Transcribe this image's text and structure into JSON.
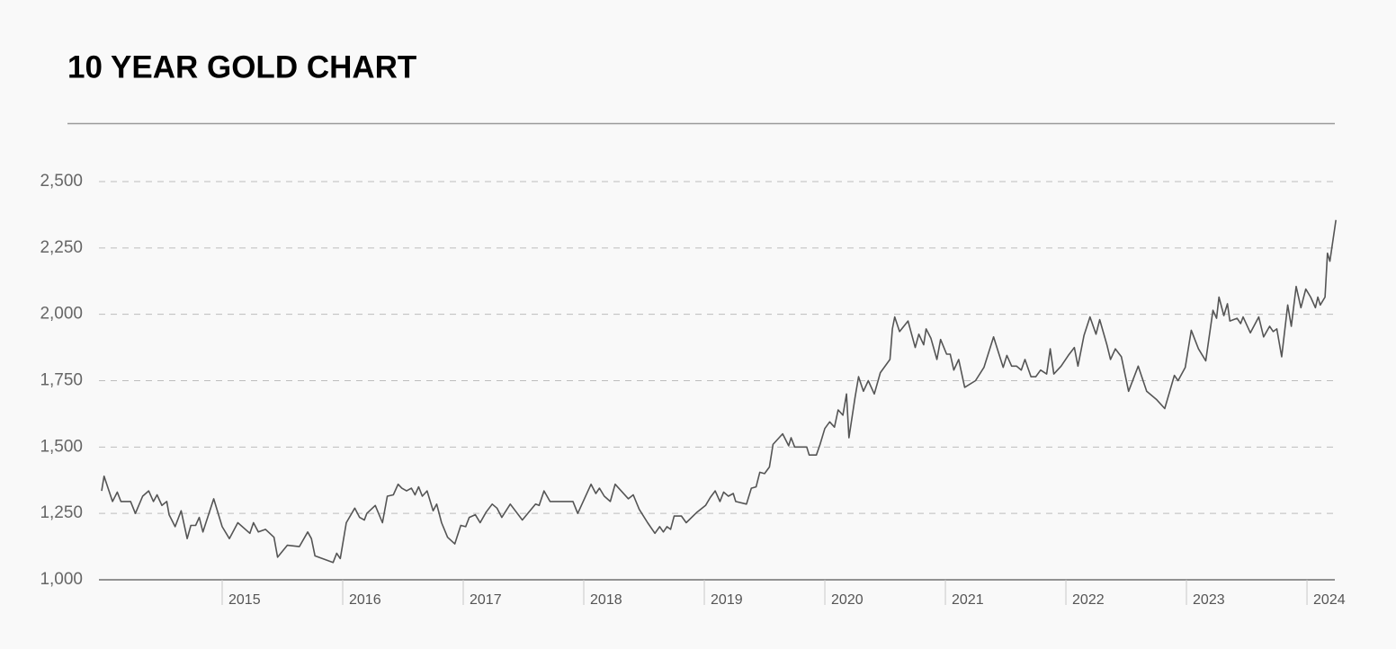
{
  "chart_data": {
    "type": "line",
    "title": "10 YEAR GOLD CHART",
    "color": "#555555",
    "grid": true,
    "xlim": [
      2014,
      2024.24
    ],
    "xticks": [
      2015,
      2016,
      2017,
      2018,
      2019,
      2020,
      2021,
      2022,
      2023,
      2024
    ],
    "ylim": [
      1000,
      2500
    ],
    "yticks": [
      {
        "value": 1000,
        "label": "1,000"
      },
      {
        "value": 1250,
        "label": "1,250"
      },
      {
        "value": 1500,
        "label": "1,500"
      },
      {
        "value": 1750,
        "label": "1,750"
      },
      {
        "value": 2000,
        "label": "2,000"
      },
      {
        "value": 2250,
        "label": "2,250"
      },
      {
        "value": 2500,
        "label": "2,500"
      }
    ],
    "x": [
      2014.0,
      2014.02,
      2014.09,
      2014.13,
      2014.16,
      2014.24,
      2014.28,
      2014.34,
      2014.39,
      2014.43,
      2014.46,
      2014.5,
      2014.54,
      2014.56,
      2014.61,
      2014.66,
      2014.71,
      2014.74,
      2014.78,
      2014.81,
      2014.84,
      2014.93,
      2015.0,
      2015.06,
      2015.13,
      2015.23,
      2015.26,
      2015.3,
      2015.36,
      2015.43,
      2015.46,
      2015.54,
      2015.64,
      2015.71,
      2015.74,
      2015.77,
      2015.92,
      2015.95,
      2015.98,
      2016.03,
      2016.1,
      2016.14,
      2016.18,
      2016.2,
      2016.27,
      2016.33,
      2016.37,
      2016.42,
      2016.46,
      2016.49,
      2016.53,
      2016.57,
      2016.6,
      2016.63,
      2016.66,
      2016.7,
      2016.75,
      2016.78,
      2016.82,
      2016.87,
      2016.93,
      2016.98,
      2017.02,
      2017.05,
      2017.1,
      2017.14,
      2017.19,
      2017.24,
      2017.28,
      2017.32,
      2017.39,
      2017.49,
      2017.6,
      2017.63,
      2017.67,
      2017.72,
      2017.82,
      2017.91,
      2017.95,
      2018.06,
      2018.1,
      2018.13,
      2018.17,
      2018.22,
      2018.26,
      2018.37,
      2018.41,
      2018.46,
      2018.53,
      2018.59,
      2018.63,
      2018.66,
      2018.69,
      2018.72,
      2018.75,
      2018.81,
      2018.85,
      2018.94,
      2019.01,
      2019.05,
      2019.09,
      2019.13,
      2019.16,
      2019.2,
      2019.24,
      2019.26,
      2019.35,
      2019.39,
      2019.43,
      2019.46,
      2019.5,
      2019.54,
      2019.57,
      2019.65,
      2019.7,
      2019.72,
      2019.75,
      2019.85,
      2019.87,
      2019.93,
      2019.96,
      2020.0,
      2020.04,
      2020.08,
      2020.11,
      2020.15,
      2020.18,
      2020.2,
      2020.25,
      2020.28,
      2020.32,
      2020.36,
      2020.41,
      2020.46,
      2020.54,
      2020.56,
      2020.58,
      2020.62,
      2020.69,
      2020.75,
      2020.78,
      2020.82,
      2020.84,
      2020.88,
      2020.93,
      2020.96,
      2021.01,
      2021.04,
      2021.07,
      2021.11,
      2021.16,
      2021.25,
      2021.32,
      2021.4,
      2021.48,
      2021.51,
      2021.55,
      2021.59,
      2021.63,
      2021.66,
      2021.71,
      2021.75,
      2021.79,
      2021.84,
      2021.87,
      2021.9,
      2021.96,
      2022.02,
      2022.07,
      2022.1,
      2022.15,
      2022.2,
      2022.25,
      2022.28,
      2022.34,
      2022.37,
      2022.41,
      2022.46,
      2022.52,
      2022.6,
      2022.67,
      2022.75,
      2022.82,
      2022.9,
      2022.93,
      2022.99,
      2023.04,
      2023.1,
      2023.16,
      2023.22,
      2023.25,
      2023.27,
      2023.31,
      2023.34,
      2023.36,
      2023.42,
      2023.45,
      2023.47,
      2023.53,
      2023.6,
      2023.64,
      2023.69,
      2023.72,
      2023.75,
      2023.79,
      2023.84,
      2023.87,
      2023.91,
      2023.95,
      2023.99,
      2024.03,
      2024.07,
      2024.09,
      2024.11,
      2024.15,
      2024.17,
      2024.19,
      2024.24
    ],
    "values": [
      1335,
      1390,
      1295,
      1330,
      1295,
      1295,
      1250,
      1315,
      1335,
      1295,
      1320,
      1280,
      1295,
      1245,
      1200,
      1260,
      1155,
      1205,
      1205,
      1235,
      1180,
      1305,
      1200,
      1155,
      1215,
      1175,
      1215,
      1180,
      1190,
      1160,
      1085,
      1130,
      1125,
      1180,
      1155,
      1090,
      1065,
      1100,
      1080,
      1215,
      1270,
      1235,
      1225,
      1250,
      1280,
      1215,
      1315,
      1320,
      1360,
      1345,
      1335,
      1345,
      1320,
      1350,
      1315,
      1335,
      1260,
      1285,
      1215,
      1160,
      1135,
      1205,
      1200,
      1235,
      1245,
      1215,
      1255,
      1285,
      1270,
      1235,
      1285,
      1225,
      1285,
      1280,
      1335,
      1295,
      1295,
      1295,
      1250,
      1360,
      1325,
      1345,
      1315,
      1295,
      1360,
      1305,
      1320,
      1265,
      1215,
      1175,
      1200,
      1180,
      1200,
      1190,
      1240,
      1240,
      1215,
      1255,
      1280,
      1310,
      1335,
      1295,
      1330,
      1315,
      1325,
      1295,
      1285,
      1345,
      1350,
      1405,
      1400,
      1425,
      1510,
      1550,
      1505,
      1535,
      1500,
      1500,
      1470,
      1470,
      1510,
      1570,
      1595,
      1575,
      1640,
      1620,
      1700,
      1535,
      1685,
      1765,
      1710,
      1750,
      1700,
      1780,
      1830,
      1945,
      1990,
      1935,
      1975,
      1875,
      1925,
      1885,
      1945,
      1910,
      1830,
      1905,
      1850,
      1850,
      1790,
      1830,
      1725,
      1750,
      1800,
      1915,
      1800,
      1845,
      1805,
      1805,
      1790,
      1830,
      1765,
      1765,
      1790,
      1775,
      1870,
      1775,
      1805,
      1845,
      1875,
      1805,
      1920,
      1990,
      1925,
      1980,
      1885,
      1830,
      1870,
      1840,
      1710,
      1805,
      1710,
      1680,
      1645,
      1770,
      1750,
      1800,
      1940,
      1870,
      1825,
      2015,
      1985,
      2065,
      1995,
      2040,
      1975,
      1985,
      1965,
      1990,
      1930,
      1990,
      1915,
      1955,
      1935,
      1945,
      1840,
      2035,
      1955,
      2105,
      2025,
      2095,
      2065,
      2025,
      2065,
      2035,
      2065,
      2230,
      2200,
      2355
    ]
  }
}
